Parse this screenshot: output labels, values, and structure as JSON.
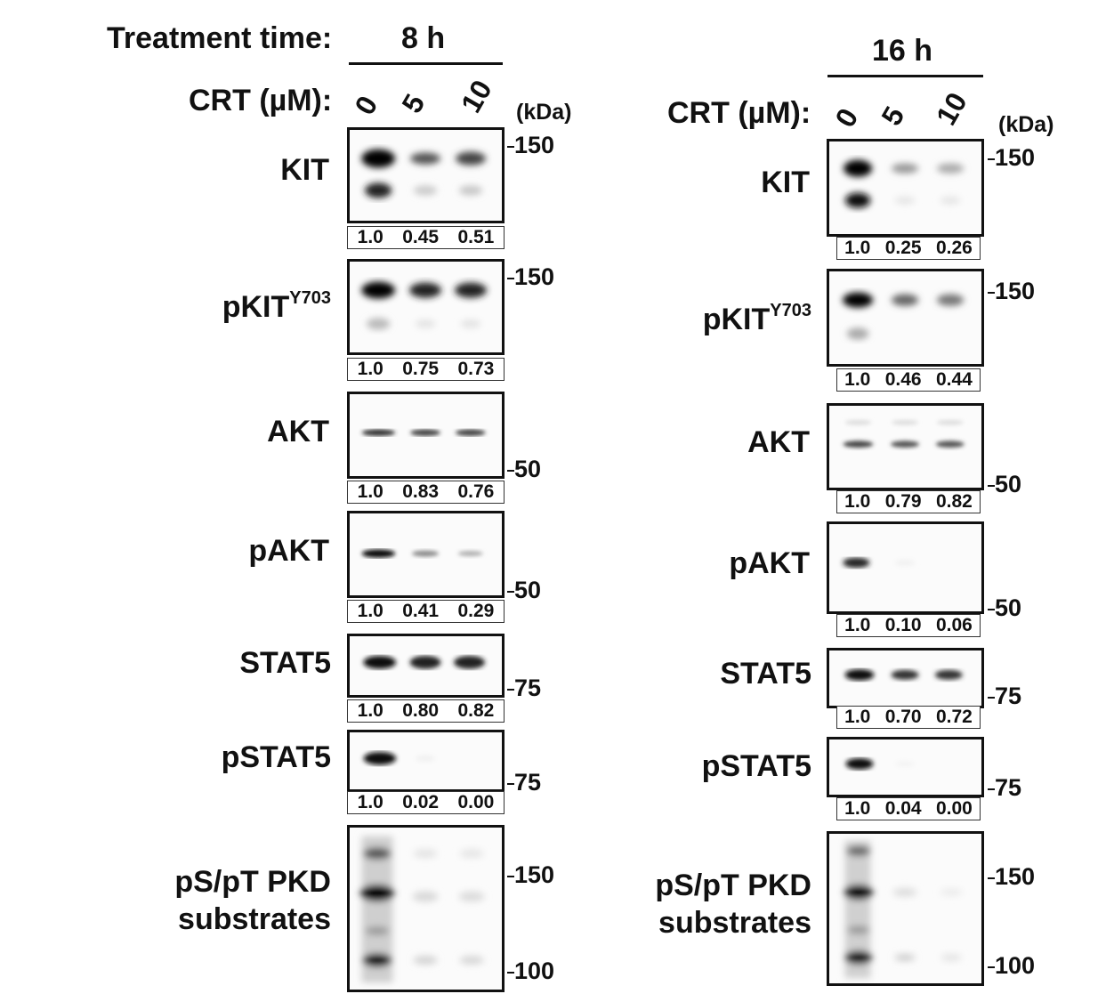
{
  "header": {
    "treatment_label": "Treatment time:",
    "time_left": "8 h",
    "time_right": "16 h",
    "crt_label": "CRT (µM):",
    "concentrations": [
      "0",
      "5",
      "10"
    ],
    "kda_unit": "(kDa)"
  },
  "panels": [
    {
      "time": "8 h",
      "rows": [
        {
          "protein": "KIT",
          "quant": [
            "1.0",
            "0.45",
            "0.51"
          ],
          "marker": "150",
          "marker_pos": "top"
        },
        {
          "protein": "pKIT",
          "superscript": "Y703",
          "quant": [
            "1.0",
            "0.75",
            "0.73"
          ],
          "marker": "150",
          "marker_pos": "top"
        },
        {
          "protein": "AKT",
          "quant": [
            "1.0",
            "0.83",
            "0.76"
          ],
          "marker": "50",
          "marker_pos": "bottom"
        },
        {
          "protein": "pAKT",
          "quant": [
            "1.0",
            "0.41",
            "0.29"
          ],
          "marker": "50",
          "marker_pos": "bottom"
        },
        {
          "protein": "STAT5",
          "quant": [
            "1.0",
            "0.80",
            "0.82"
          ],
          "marker": "75",
          "marker_pos": "bottom"
        },
        {
          "protein": "pSTAT5",
          "quant": [
            "1.0",
            "0.02",
            "0.00"
          ],
          "marker": "75",
          "marker_pos": "bottom"
        },
        {
          "protein": "pS/pT PKD substrates",
          "markers": [
            "150",
            "100"
          ]
        }
      ]
    },
    {
      "time": "16 h",
      "rows": [
        {
          "protein": "KIT",
          "quant": [
            "1.0",
            "0.25",
            "0.26"
          ],
          "marker": "150",
          "marker_pos": "top"
        },
        {
          "protein": "pKIT",
          "superscript": "Y703",
          "quant": [
            "1.0",
            "0.46",
            "0.44"
          ],
          "marker": "150",
          "marker_pos": "top"
        },
        {
          "protein": "AKT",
          "quant": [
            "1.0",
            "0.79",
            "0.82"
          ],
          "marker": "50",
          "marker_pos": "bottom"
        },
        {
          "protein": "pAKT",
          "quant": [
            "1.0",
            "0.10",
            "0.06"
          ],
          "marker": "50",
          "marker_pos": "bottom"
        },
        {
          "protein": "STAT5",
          "quant": [
            "1.0",
            "0.70",
            "0.72"
          ],
          "marker": "75",
          "marker_pos": "bottom"
        },
        {
          "protein": "pSTAT5",
          "quant": [
            "1.0",
            "0.04",
            "0.00"
          ],
          "marker": "75",
          "marker_pos": "bottom"
        },
        {
          "protein": "pS/pT PKD substrates",
          "markers": [
            "150",
            "100"
          ]
        }
      ]
    }
  ]
}
